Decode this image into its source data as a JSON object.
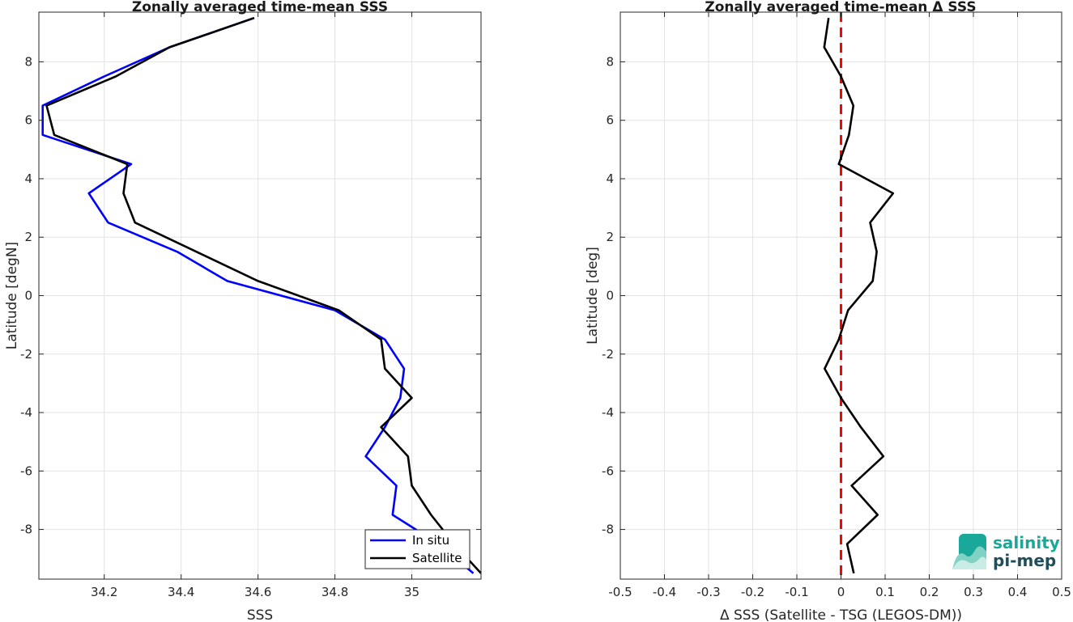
{
  "chart_data": [
    {
      "type": "line",
      "title": "Zonally averaged time-mean SSS",
      "xlabel": "SSS",
      "ylabel": "Latitude [degN]",
      "xlim": [
        34.03,
        35.18
      ],
      "ylim": [
        -9.7,
        9.7
      ],
      "xticks": [
        34.2,
        34.4,
        34.6,
        34.8,
        35
      ],
      "xtick_labels": [
        "34.2",
        "34.4",
        "34.6",
        "34.8",
        "35"
      ],
      "yticks": [
        -8,
        -6,
        -4,
        -2,
        0,
        2,
        4,
        6,
        8
      ],
      "ytick_labels": [
        "-8",
        "-6",
        "-4",
        "-2",
        "0",
        "2",
        "4",
        "6",
        "8"
      ],
      "grid": true,
      "legend_position": "bottom-right",
      "series": [
        {
          "name": "In situ",
          "color": "#0000ff",
          "points": [
            [
              34.59,
              9.5
            ],
            [
              34.37,
              8.5
            ],
            [
              34.2,
              7.5
            ],
            [
              34.04,
              6.5
            ],
            [
              34.04,
              5.5
            ],
            [
              34.27,
              4.5
            ],
            [
              34.16,
              3.5
            ],
            [
              34.21,
              2.5
            ],
            [
              34.39,
              1.5
            ],
            [
              34.52,
              0.5
            ],
            [
              34.8,
              -0.5
            ],
            [
              34.93,
              -1.5
            ],
            [
              34.98,
              -2.5
            ],
            [
              34.97,
              -3.5
            ],
            [
              34.93,
              -4.5
            ],
            [
              34.88,
              -5.5
            ],
            [
              34.96,
              -6.5
            ],
            [
              34.95,
              -7.5
            ],
            [
              35.07,
              -8.5
            ],
            [
              35.16,
              -9.5
            ]
          ]
        },
        {
          "name": "Satellite",
          "color": "#000000",
          "points": [
            [
              34.59,
              9.5
            ],
            [
              34.37,
              8.5
            ],
            [
              34.23,
              7.5
            ],
            [
              34.05,
              6.5
            ],
            [
              34.07,
              5.5
            ],
            [
              34.26,
              4.5
            ],
            [
              34.25,
              3.5
            ],
            [
              34.28,
              2.5
            ],
            [
              34.44,
              1.5
            ],
            [
              34.6,
              0.5
            ],
            [
              34.81,
              -0.5
            ],
            [
              34.92,
              -1.5
            ],
            [
              34.93,
              -2.5
            ],
            [
              35.0,
              -3.5
            ],
            [
              34.92,
              -4.5
            ],
            [
              34.99,
              -5.5
            ],
            [
              35.0,
              -6.5
            ],
            [
              35.05,
              -7.5
            ],
            [
              35.11,
              -8.5
            ],
            [
              35.18,
              -9.5
            ]
          ]
        }
      ]
    },
    {
      "type": "line",
      "title": "Zonally averaged time-mean Δ SSS",
      "xlabel": "Δ SSS (Satellite - TSG (LEGOS-DM))",
      "ylabel": "Latitude [deg]",
      "xlim": [
        -0.5,
        0.5
      ],
      "ylim": [
        -9.7,
        9.7
      ],
      "xticks": [
        -0.5,
        -0.4,
        -0.3,
        -0.2,
        -0.1,
        0,
        0.1,
        0.2,
        0.3,
        0.4,
        0.5
      ],
      "xtick_labels": [
        "-0.5",
        "-0.4",
        "-0.3",
        "-0.2",
        "-0.1",
        "0",
        "0.1",
        "0.2",
        "0.3",
        "0.4",
        "0.5"
      ],
      "yticks": [
        -8,
        -6,
        -4,
        -2,
        0,
        2,
        4,
        6,
        8
      ],
      "ytick_labels": [
        "-8",
        "-6",
        "-4",
        "-2",
        "0",
        "2",
        "4",
        "6",
        "8"
      ],
      "grid": true,
      "reference_line": {
        "x": 0,
        "color": "#ff0000",
        "style": "dashed"
      },
      "series": [
        {
          "color": "#000000",
          "points": [
            [
              -0.028,
              9.5
            ],
            [
              -0.038,
              8.5
            ],
            [
              0.0,
              7.5
            ],
            [
              0.028,
              6.5
            ],
            [
              0.018,
              5.5
            ],
            [
              -0.005,
              4.5
            ],
            [
              0.118,
              3.5
            ],
            [
              0.066,
              2.5
            ],
            [
              0.081,
              1.5
            ],
            [
              0.072,
              0.5
            ],
            [
              0.016,
              -0.5
            ],
            [
              -0.005,
              -1.5
            ],
            [
              -0.037,
              -2.5
            ],
            [
              0.0,
              -3.5
            ],
            [
              0.045,
              -4.5
            ],
            [
              0.096,
              -5.5
            ],
            [
              0.024,
              -6.5
            ],
            [
              0.083,
              -7.5
            ],
            [
              0.014,
              -8.5
            ],
            [
              0.029,
              -9.5
            ]
          ]
        }
      ]
    }
  ],
  "logo": {
    "line1": "salinity",
    "line2": "pi-mep",
    "color_text1": "#1aa89a",
    "color_text2": "#1f4e5a"
  }
}
